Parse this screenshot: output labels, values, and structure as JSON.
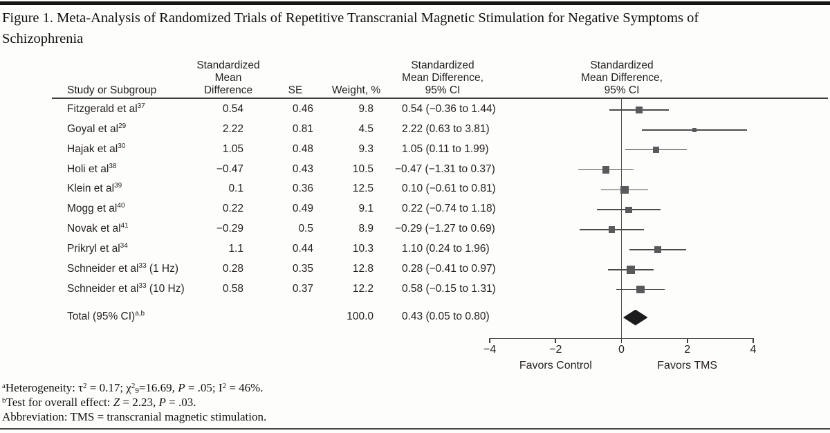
{
  "figure": {
    "title_lines": [
      "Figure 1. Meta-Analysis of Randomized Trials of Repetitive Transcranial Magnetic Stimulation for Negative Symptoms of",
      "Schizophrenia"
    ]
  },
  "table_headers": {
    "study": "Study or Subgroup",
    "smd": [
      "Standardized",
      "Mean",
      "Difference"
    ],
    "se": "SE",
    "weight": "Weight, %",
    "ci": [
      "Standardized",
      "Mean Difference,",
      "95% CI"
    ],
    "plot": [
      "Standardized",
      "Mean Difference,",
      "95% CI"
    ]
  },
  "chart_data": {
    "type": "forest",
    "effect_measure": "Standardized Mean Difference",
    "studies": [
      {
        "name": "Fitzgerald et al",
        "sup": "37",
        "suffix": "",
        "smd": "0.54",
        "se": "0.46",
        "weight": "9.8",
        "ci_text": "0.54 (−0.36 to 1.44)",
        "est": 0.54,
        "lo": -0.36,
        "hi": 1.44,
        "weight_val": 9.8
      },
      {
        "name": "Goyal et al",
        "sup": "29",
        "suffix": "",
        "smd": "2.22",
        "se": "0.81",
        "weight": "4.5",
        "ci_text": "2.22 (0.63 to 3.81)",
        "est": 2.22,
        "lo": 0.63,
        "hi": 3.81,
        "weight_val": 4.5
      },
      {
        "name": "Hajak et al",
        "sup": "30",
        "suffix": "",
        "smd": "1.05",
        "se": "0.48",
        "weight": "9.3",
        "ci_text": "1.05 (0.11 to 1.99)",
        "est": 1.05,
        "lo": 0.11,
        "hi": 1.99,
        "weight_val": 9.3
      },
      {
        "name": "Holi et al",
        "sup": "38",
        "suffix": "",
        "smd": "−0.47",
        "se": "0.43",
        "weight": "10.5",
        "ci_text": "−0.47 (−1.31 to 0.37)",
        "est": -0.47,
        "lo": -1.31,
        "hi": 0.37,
        "weight_val": 10.5
      },
      {
        "name": "Klein et al",
        "sup": "39",
        "suffix": "",
        "smd": "0.1",
        "se": "0.36",
        "weight": "12.5",
        "ci_text": "0.10 (−0.61 to 0.81)",
        "est": 0.1,
        "lo": -0.61,
        "hi": 0.81,
        "weight_val": 12.5
      },
      {
        "name": "Mogg et al",
        "sup": "40",
        "suffix": "",
        "smd": "0.22",
        "se": "0.49",
        "weight": "9.1",
        "ci_text": "0.22 (−0.74 to 1.18)",
        "est": 0.22,
        "lo": -0.74,
        "hi": 1.18,
        "weight_val": 9.1
      },
      {
        "name": "Novak et al",
        "sup": "41",
        "suffix": "",
        "smd": "−0.29",
        "se": "0.5",
        "weight": "8.9",
        "ci_text": "−0.29 (−1.27 to 0.69)",
        "est": -0.29,
        "lo": -1.27,
        "hi": 0.69,
        "weight_val": 8.9
      },
      {
        "name": "Prikryl et al",
        "sup": "34",
        "suffix": "",
        "smd": "1.1",
        "se": "0.44",
        "weight": "10.3",
        "ci_text": "1.10 (0.24 to 1.96)",
        "est": 1.1,
        "lo": 0.24,
        "hi": 1.96,
        "weight_val": 10.3
      },
      {
        "name": "Schneider et al",
        "sup": "33",
        "suffix": " (1 Hz)",
        "smd": "0.28",
        "se": "0.35",
        "weight": "12.8",
        "ci_text": "0.28 (−0.41 to 0.97)",
        "est": 0.28,
        "lo": -0.41,
        "hi": 0.97,
        "weight_val": 12.8
      },
      {
        "name": "Schneider et al",
        "sup": "33",
        "suffix": " (10 Hz)",
        "smd": "0.58",
        "se": "0.37",
        "weight": "12.2",
        "ci_text": "0.58 (−0.15 to 1.31)",
        "est": 0.58,
        "lo": -0.15,
        "hi": 1.31,
        "weight_val": 12.2
      }
    ],
    "total": {
      "name": "Total (95% CI)",
      "sup": "a,b",
      "weight": "100.0",
      "ci_text": "0.43 (0.05 to 0.80)",
      "est": 0.43,
      "lo": 0.05,
      "hi": 0.8
    },
    "axis": {
      "min": -4,
      "max": 4,
      "ticks": [
        "−4",
        "−2",
        "0",
        "2",
        "4"
      ],
      "tick_values": [
        -4,
        -2,
        0,
        2,
        4
      ],
      "left_label": "Favors Control",
      "right_label": "Favors TMS"
    },
    "colors": {
      "square": "#58595b",
      "ci_line": "#4a4a4a",
      "diamond": "#1c1c1c",
      "zero_line": "#4a4a4a"
    }
  },
  "footnotes": [
    {
      "sup": "a",
      "text": "Heterogeneity: τ^2^ = 0.17; χ^2^~9~=16.69, *P* = .05; I^2^ = 46%."
    },
    {
      "sup": "b",
      "text": "Test for overall effect: *Z* = 2.23, *P* = .03."
    },
    {
      "sup": "",
      "text": "Abbreviation: TMS = transcranial magnetic stimulation."
    }
  ]
}
